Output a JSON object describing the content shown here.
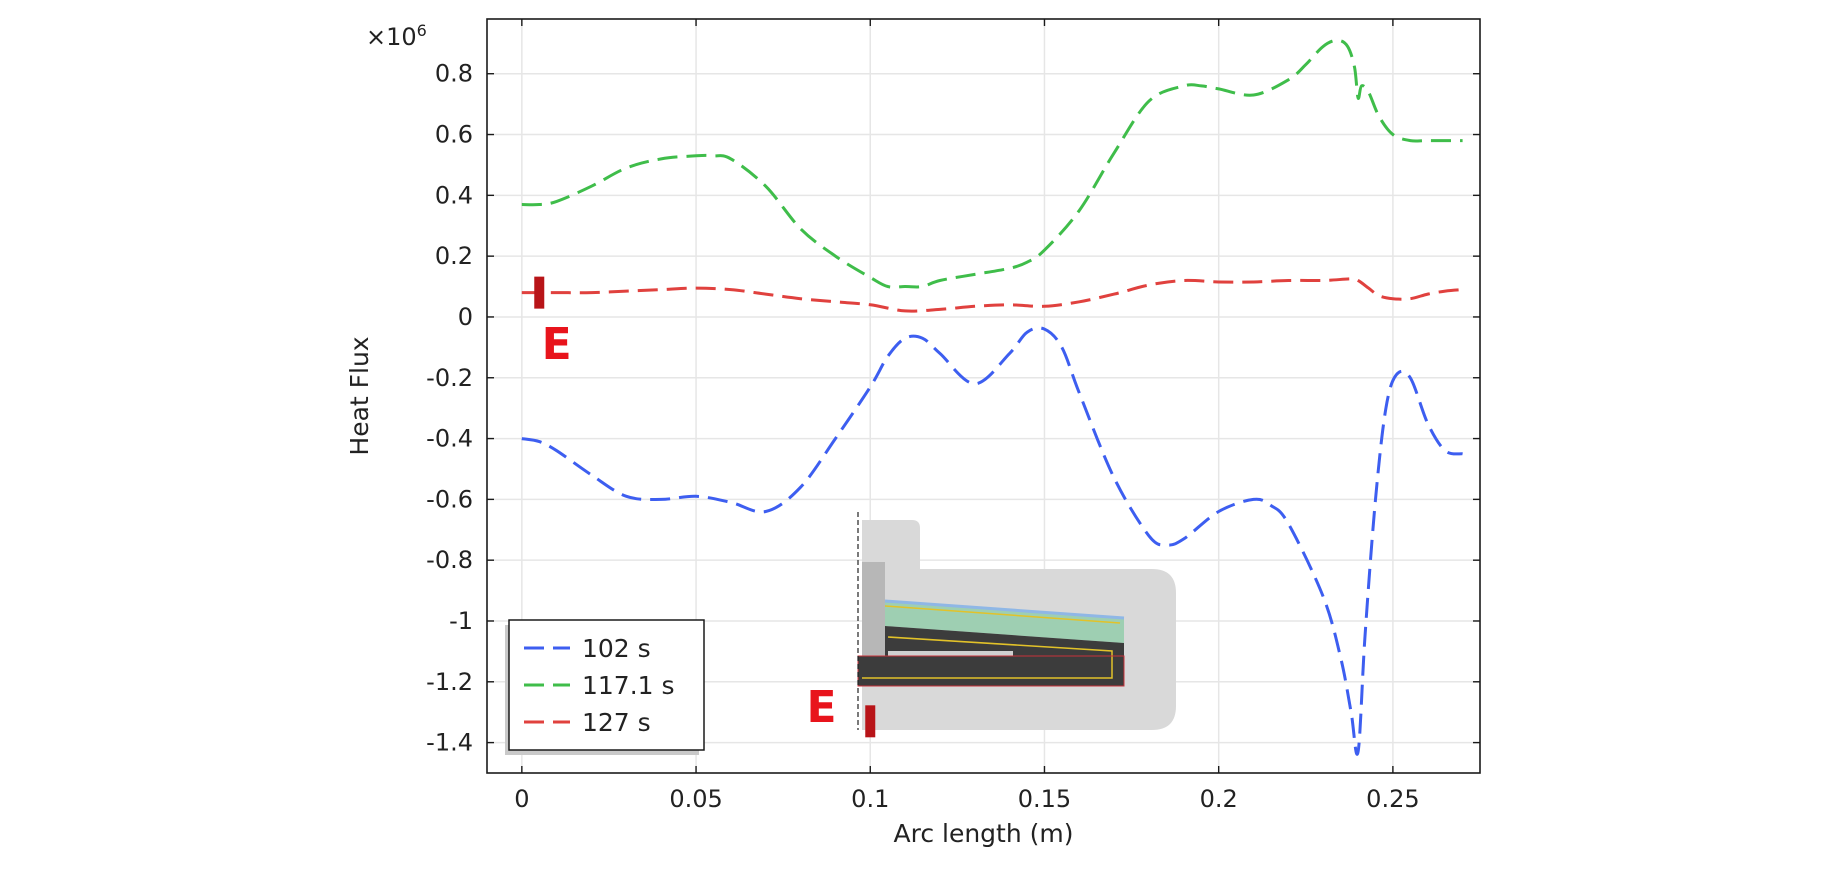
{
  "chart_data": {
    "type": "line",
    "title": "",
    "xlabel": "Arc length (m)",
    "ylabel": "Heat Flux",
    "y_multiplier": "×10",
    "y_multiplier_exp": "6",
    "xlim": [
      -0.01,
      0.275
    ],
    "ylim": [
      -1.5,
      0.98
    ],
    "x_ticks": [
      0,
      0.05,
      0.1,
      0.15,
      0.2,
      0.25
    ],
    "x_tick_labels": [
      "0",
      "0.05",
      "0.1",
      "0.15",
      "0.2",
      "0.25"
    ],
    "y_ticks": [
      -1.4,
      -1.2,
      -1,
      -0.8,
      -0.6,
      -0.4,
      -0.2,
      0,
      0.2,
      0.4,
      0.6,
      0.8
    ],
    "y_tick_labels": [
      "-1.4",
      "-1.2",
      "-1",
      "-0.8",
      "-0.6",
      "-0.4",
      "-0.2",
      "0",
      "0.2",
      "0.4",
      "0.6",
      "0.8"
    ],
    "grid": true,
    "legend_position": "bottom-left",
    "series": [
      {
        "name": "102 s",
        "color": "#3d5ef0",
        "x": [
          0,
          0.005,
          0.01,
          0.02,
          0.03,
          0.04,
          0.05,
          0.06,
          0.07,
          0.08,
          0.09,
          0.1,
          0.105,
          0.11,
          0.115,
          0.12,
          0.13,
          0.14,
          0.145,
          0.15,
          0.155,
          0.16,
          0.17,
          0.18,
          0.185,
          0.19,
          0.2,
          0.21,
          0.215,
          0.22,
          0.23,
          0.235,
          0.238,
          0.24,
          0.242,
          0.245,
          0.248,
          0.251,
          0.255,
          0.26,
          0.265,
          0.27
        ],
        "values": [
          -0.4,
          -0.41,
          -0.44,
          -0.52,
          -0.59,
          -0.6,
          -0.59,
          -0.61,
          -0.64,
          -0.56,
          -0.4,
          -0.23,
          -0.13,
          -0.07,
          -0.07,
          -0.12,
          -0.22,
          -0.12,
          -0.05,
          -0.04,
          -0.1,
          -0.25,
          -0.53,
          -0.72,
          -0.75,
          -0.73,
          -0.64,
          -0.6,
          -0.62,
          -0.68,
          -0.92,
          -1.12,
          -1.3,
          -1.43,
          -1.05,
          -0.6,
          -0.3,
          -0.19,
          -0.2,
          -0.35,
          -0.44,
          -0.45
        ]
      },
      {
        "name": "117.1 s",
        "color": "#3fbd4a",
        "x": [
          0,
          0.005,
          0.01,
          0.02,
          0.03,
          0.04,
          0.05,
          0.055,
          0.06,
          0.07,
          0.08,
          0.09,
          0.1,
          0.105,
          0.11,
          0.115,
          0.12,
          0.13,
          0.14,
          0.145,
          0.15,
          0.16,
          0.17,
          0.18,
          0.19,
          0.195,
          0.2,
          0.21,
          0.22,
          0.225,
          0.23,
          0.234,
          0.237,
          0.239,
          0.24,
          0.241,
          0.243,
          0.246,
          0.25,
          0.255,
          0.26,
          0.27
        ],
        "values": [
          0.37,
          0.37,
          0.38,
          0.43,
          0.49,
          0.52,
          0.53,
          0.53,
          0.52,
          0.43,
          0.29,
          0.2,
          0.13,
          0.1,
          0.1,
          0.1,
          0.12,
          0.14,
          0.16,
          0.18,
          0.22,
          0.35,
          0.54,
          0.71,
          0.76,
          0.76,
          0.75,
          0.73,
          0.78,
          0.83,
          0.89,
          0.91,
          0.89,
          0.82,
          0.72,
          0.76,
          0.74,
          0.66,
          0.6,
          0.58,
          0.58,
          0.58
        ]
      },
      {
        "name": "127 s",
        "color": "#e0413e",
        "x": [
          0,
          0.01,
          0.02,
          0.03,
          0.04,
          0.05,
          0.06,
          0.07,
          0.08,
          0.09,
          0.1,
          0.11,
          0.12,
          0.13,
          0.14,
          0.15,
          0.16,
          0.17,
          0.18,
          0.19,
          0.2,
          0.21,
          0.22,
          0.23,
          0.238,
          0.24,
          0.243,
          0.246,
          0.25,
          0.255,
          0.26,
          0.265,
          0.27
        ],
        "values": [
          0.08,
          0.08,
          0.08,
          0.085,
          0.09,
          0.095,
          0.09,
          0.075,
          0.06,
          0.05,
          0.04,
          0.02,
          0.025,
          0.035,
          0.04,
          0.035,
          0.05,
          0.075,
          0.105,
          0.12,
          0.115,
          0.115,
          0.12,
          0.12,
          0.125,
          0.12,
          0.095,
          0.07,
          0.06,
          0.06,
          0.075,
          0.085,
          0.09
        ]
      }
    ],
    "annotations": [
      {
        "text": "E",
        "marker_x": 0.005,
        "marker_y": 0.08,
        "label_x": 0.01,
        "label_y": -0.085
      },
      {
        "text": "E",
        "marker_x": 0.1,
        "marker_y": -1.33,
        "label_x": 0.086,
        "label_y": -1.28
      }
    ]
  }
}
